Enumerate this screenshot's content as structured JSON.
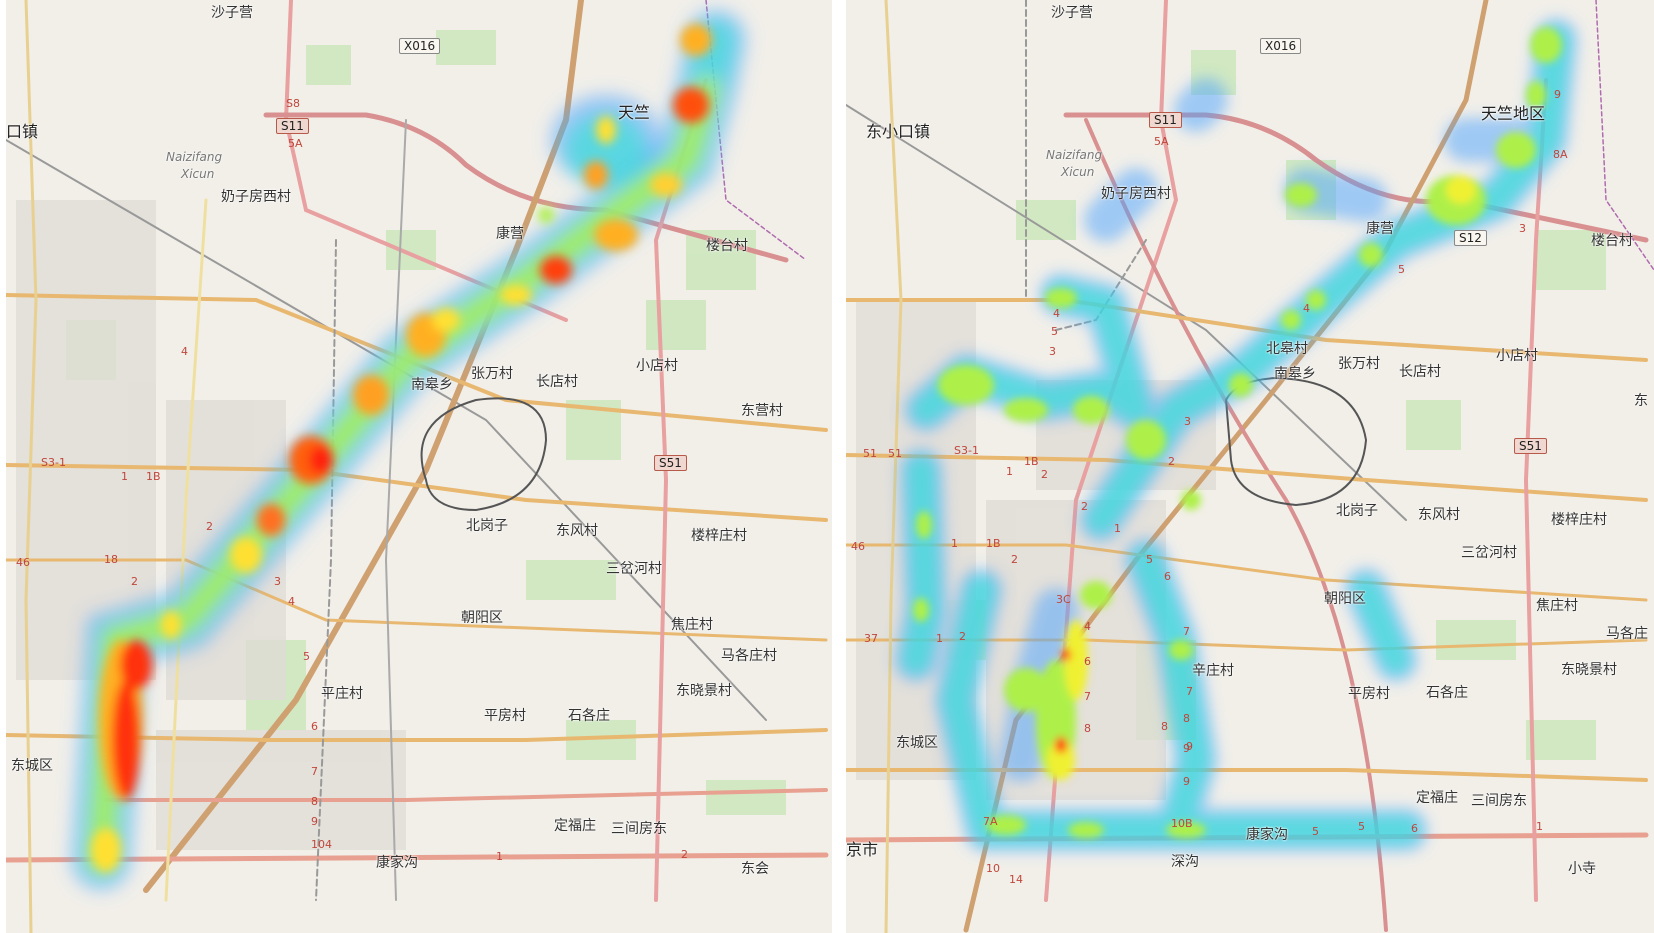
{
  "left_map": {
    "place_labels": [
      "沙子营",
      "口镇",
      "Naizifang",
      "Xicun",
      "奶子房西村",
      "康营",
      "天竺",
      "楼台村",
      "张万村",
      "长店村",
      "小店村",
      "东营村",
      "北岗子",
      "东风村",
      "三岔河村",
      "楼梓庄村",
      "朝阳区",
      "焦庄村",
      "马各庄村",
      "平房村",
      "石各庄",
      "东晓景村",
      "东城区",
      "定福庄",
      "三间房东",
      "康家沟",
      "东会",
      "平庄村",
      "南皋乡"
    ],
    "road_shields": [
      "X016",
      "S11",
      "S8",
      "5A",
      "S51",
      "S3-1",
      "18",
      "46",
      "104"
    ],
    "route_numbers": [
      "4",
      "1",
      "1B",
      "2",
      "2",
      "3",
      "4",
      "5",
      "6",
      "7",
      "8",
      "9",
      "1",
      "2"
    ]
  },
  "right_map": {
    "place_labels": [
      "沙子营",
      "东小口镇",
      "Naizifang",
      "Xicun",
      "奶子房西村",
      "康营",
      "天竺地区",
      "楼台村",
      "北皋村",
      "张万村",
      "长店村",
      "小店村",
      "南皋乡",
      "北岗子",
      "东风村",
      "三岔河村",
      "楼梓庄村",
      "朝阳区",
      "焦庄村",
      "马各庄",
      "平房村",
      "石各庄",
      "东晓景村",
      "东城区",
      "辛庄村",
      "定福庄",
      "三间房东",
      "康家沟",
      "深沟",
      "京市",
      "小寺",
      "东"
    ],
    "road_shields": [
      "X016",
      "S11",
      "5A",
      "S12",
      "S51"
    ],
    "route_numbers": [
      "51",
      "51",
      "S3-1",
      "1",
      "1B",
      "2",
      "2",
      "46",
      "1",
      "1B",
      "2",
      "37",
      "1",
      "2",
      "3C",
      "4",
      "6",
      "7",
      "8",
      "3",
      "2",
      "1",
      "5",
      "6",
      "4",
      "5",
      "4",
      "3",
      "7",
      "8",
      "9",
      "9",
      "10B",
      "5",
      "5",
      "6",
      "7",
      "8",
      "9",
      "7A",
      "10",
      "14",
      "9",
      "8A",
      "3",
      "5",
      "1"
    ]
  }
}
